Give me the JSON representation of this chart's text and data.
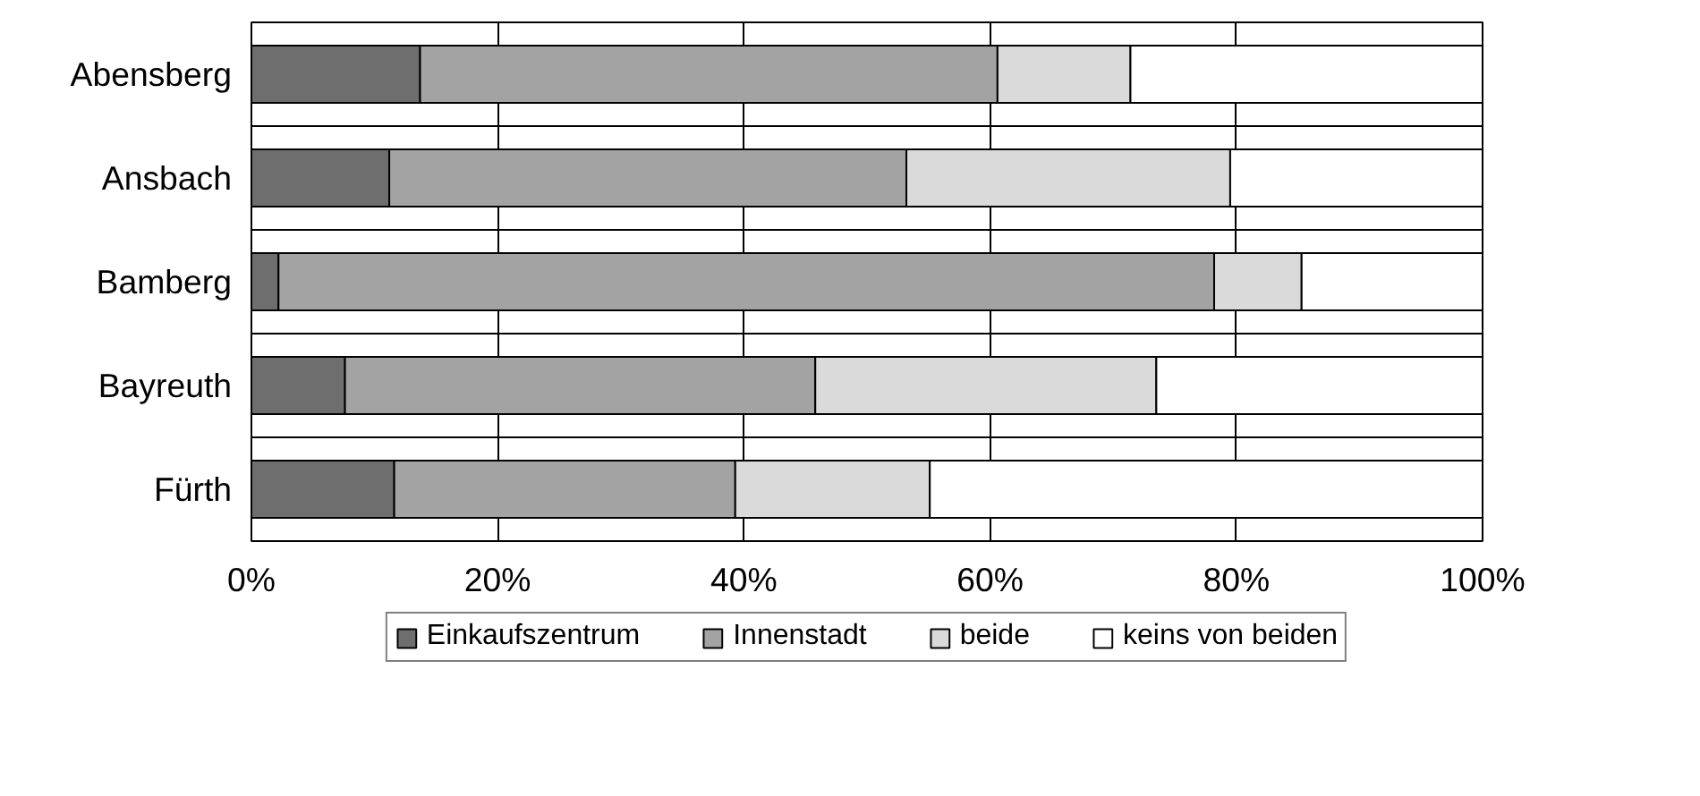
{
  "chart_data": {
    "type": "bar",
    "orientation": "horizontal",
    "stacked": true,
    "categories": [
      "Abensberg",
      "Ansbach",
      "Bamberg",
      "Bayreuth",
      "Fürth"
    ],
    "series": [
      {
        "name": "Einkaufszentrum",
        "color": "#6e6e6e",
        "values": [
          13.7,
          11.2,
          2.2,
          7.6,
          11.6
        ]
      },
      {
        "name": "Innenstadt",
        "color": "#a3a3a3",
        "values": [
          46.9,
          42.0,
          76.0,
          38.2,
          27.7
        ]
      },
      {
        "name": "beide",
        "color": "#dadada",
        "values": [
          10.8,
          26.3,
          7.1,
          27.7,
          15.8
        ]
      },
      {
        "name": "keins von beiden",
        "color": "#ffffff",
        "values": [
          28.6,
          20.5,
          14.7,
          26.5,
          44.9
        ]
      }
    ],
    "xlim": [
      0,
      100
    ],
    "xticks": [
      {
        "value": 0,
        "label": "0%"
      },
      {
        "value": 20,
        "label": "20%"
      },
      {
        "value": 40,
        "label": "40%"
      },
      {
        "value": 60,
        "label": "60%"
      },
      {
        "value": 80,
        "label": "80%"
      },
      {
        "value": 100,
        "label": "100%"
      }
    ],
    "grid": true,
    "legend": "bottom"
  }
}
